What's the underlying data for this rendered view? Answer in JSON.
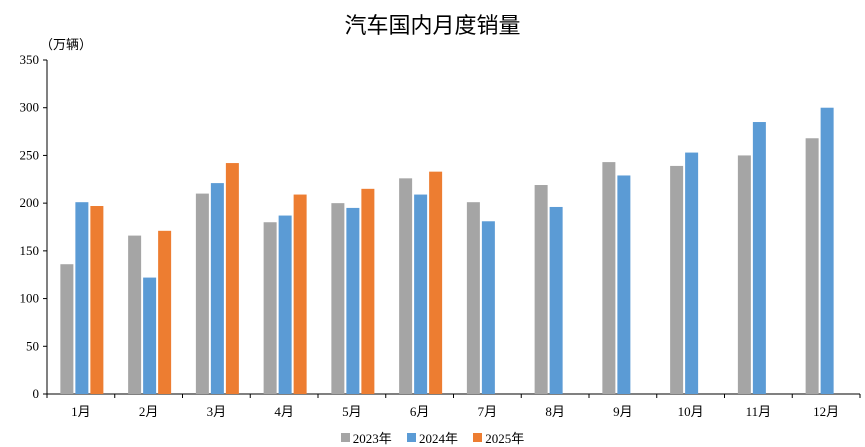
{
  "chart_data": {
    "type": "bar",
    "title": "汽车国内月度销量",
    "ylabel": "（万辆）",
    "xlabel": "",
    "ylim": [
      0,
      350
    ],
    "yticks": [
      0,
      50,
      100,
      150,
      200,
      250,
      300,
      350
    ],
    "grid": false,
    "legend_position": "bottom",
    "categories": [
      "1月",
      "2月",
      "3月",
      "4月",
      "5月",
      "6月",
      "7月",
      "8月",
      "9月",
      "10月",
      "11月",
      "12月"
    ],
    "series": [
      {
        "name": "2023年",
        "color": "#a5a5a5",
        "values": [
          136,
          166,
          210,
          180,
          200,
          226,
          201,
          219,
          243,
          239,
          250,
          268
        ]
      },
      {
        "name": "2024年",
        "color": "#5b9bd5",
        "values": [
          201,
          122,
          221,
          187,
          195,
          209,
          181,
          196,
          229,
          253,
          285,
          300
        ]
      },
      {
        "name": "2025年",
        "color": "#ed7d31",
        "values": [
          197,
          171,
          242,
          209,
          215,
          233,
          null,
          null,
          null,
          null,
          null,
          null
        ]
      }
    ]
  }
}
